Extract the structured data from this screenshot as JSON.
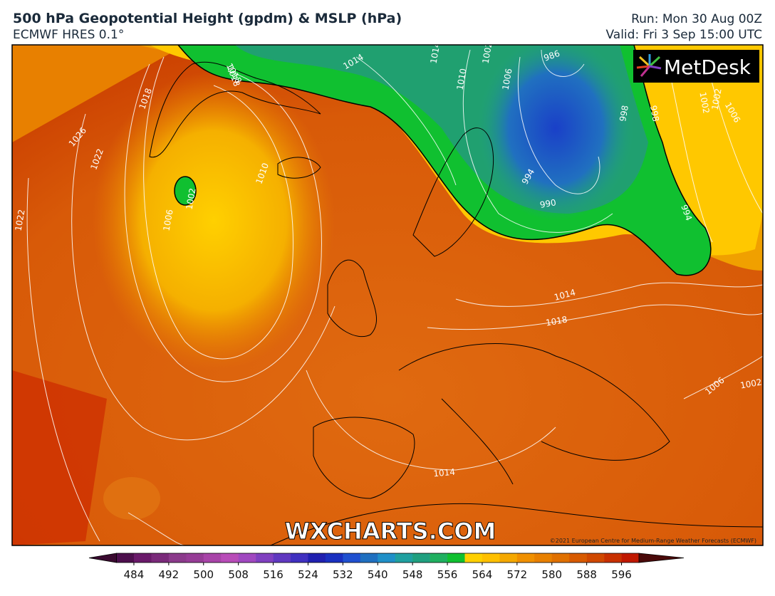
{
  "header": {
    "title": "500 hPa Geopotential Height (gpdm) & MSLP (hPa)",
    "subtitle": "ECMWF HRES 0.1°",
    "run": "Run: Mon 30 Aug 00Z",
    "valid": "Valid: Fri 3 Sep 15:00 UTC"
  },
  "map": {
    "logo": "MetDesk",
    "watermark": "WXCHARTS.COM",
    "copyright": "©2021 European Centre for Medium-Range Weather Forecasts (ECMWF)",
    "contour_labels": [
      "1014",
      "1010",
      "1006",
      "1002",
      "998",
      "994",
      "990",
      "986",
      "1018",
      "1022",
      "1026",
      "1022",
      "1018",
      "1010",
      "1006",
      "1002",
      "1002",
      "1014",
      "1018",
      "1006",
      "1002",
      "994",
      "998",
      "1002",
      "1006",
      "1014",
      "1018",
      "1014"
    ]
  },
  "colorbar": {
    "range": [
      480,
      600
    ],
    "ticks": [
      484,
      492,
      500,
      508,
      516,
      524,
      532,
      540,
      548,
      556,
      564,
      572,
      580,
      588,
      596
    ],
    "colors": [
      "#4d0f4d",
      "#6a1a6a",
      "#7a2a7a",
      "#8b3a8b",
      "#963c96",
      "#a844a8",
      "#b84cb8",
      "#a048c0",
      "#8040c0",
      "#6038c0",
      "#4030c0",
      "#2020b0",
      "#1a30c0",
      "#2050d0",
      "#2070c0",
      "#2090c8",
      "#20a0a0",
      "#20a080",
      "#20b060",
      "#10c030",
      "#ffd000",
      "#ffc000",
      "#f5a800",
      "#f09000",
      "#e88000",
      "#e07000",
      "#d85a00",
      "#d04800",
      "#c83000",
      "#c01800"
    ],
    "under_color": "#3a0a30",
    "over_color": "#4a0a0a"
  }
}
